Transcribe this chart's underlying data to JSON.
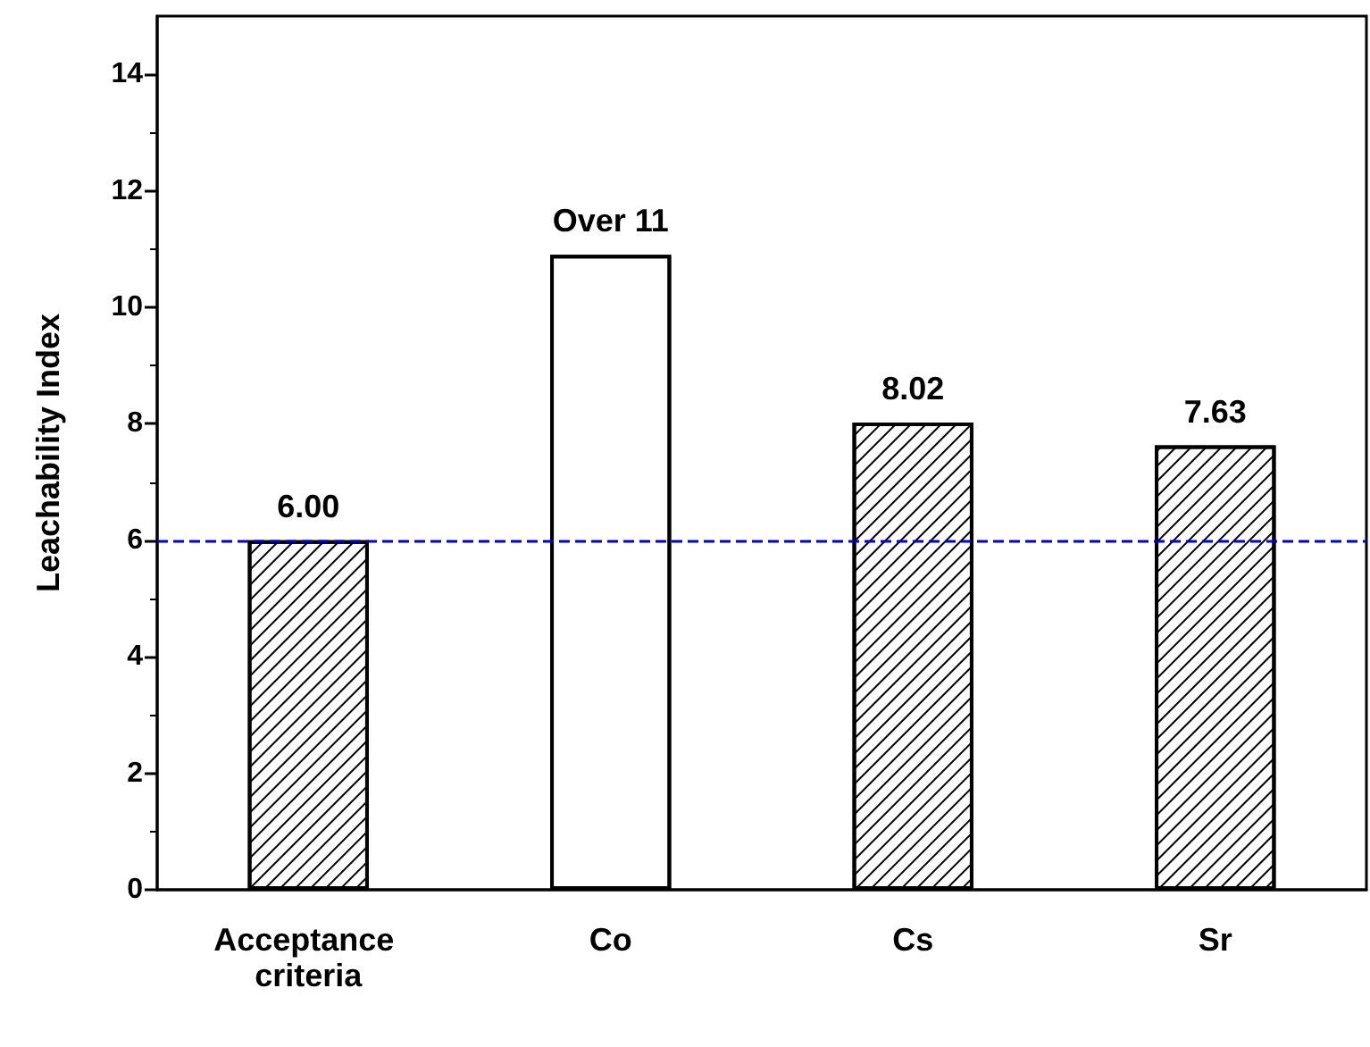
{
  "chart_data": {
    "type": "bar",
    "ylabel": "Leachability Index",
    "categories": [
      "Acceptance criteria",
      "Co",
      "Cs",
      "Sr"
    ],
    "values": [
      6.0,
      10.9,
      8.02,
      7.63
    ],
    "value_labels": [
      "6.00",
      "Over 11",
      "8.02",
      "7.63"
    ],
    "colors": [
      "#000000",
      "#ffffff",
      "#000000",
      "#000000"
    ],
    "ylim": [
      0,
      15
    ],
    "yticks": [
      0,
      2,
      4,
      6,
      8,
      10,
      12,
      14
    ],
    "ref_lines": [
      {
        "axis": "y",
        "value": 6,
        "color": "#0000cc",
        "line_style": "dashed"
      }
    ],
    "grid": false
  }
}
